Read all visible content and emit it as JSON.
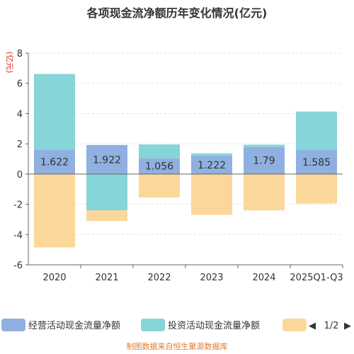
{
  "chart_data": {
    "type": "bar",
    "title": "各项现金流净额历年变化情况(亿元)",
    "ylabel": "(亿元)",
    "xlabel": "",
    "categories": [
      "2020",
      "2021",
      "2022",
      "2023",
      "2024",
      "2025Q1-Q3"
    ],
    "ylim": [
      -6,
      8
    ],
    "yticks": [
      8,
      6,
      4,
      2,
      0,
      -2,
      -4,
      -6
    ],
    "grid": true,
    "stacked": true,
    "legend_position": "bottom",
    "series": [
      {
        "name": "经营活动现金流量净额",
        "color": "#8fb0e0",
        "values": [
          1.622,
          1.922,
          1.056,
          1.222,
          1.79,
          1.585
        ]
      },
      {
        "name": "投资活动现金流量净额",
        "color": "#86d5d8",
        "values": [
          5.0,
          -2.4,
          0.9,
          0.15,
          0.15,
          2.55
        ]
      },
      {
        "name": "",
        "color": "#fbd89a",
        "values": [
          -4.85,
          -0.7,
          -1.55,
          -2.7,
          -2.4,
          -1.95
        ]
      }
    ],
    "data_labels": [
      "1.622",
      "1.922",
      "1.056",
      "1.222",
      "1.79",
      "1.585"
    ]
  },
  "legend": {
    "page_indicator": "1/2",
    "prev_arrow": "◀",
    "next_arrow": "▶"
  },
  "footer": {
    "source": "制图数据来自恒生聚源数据库"
  }
}
